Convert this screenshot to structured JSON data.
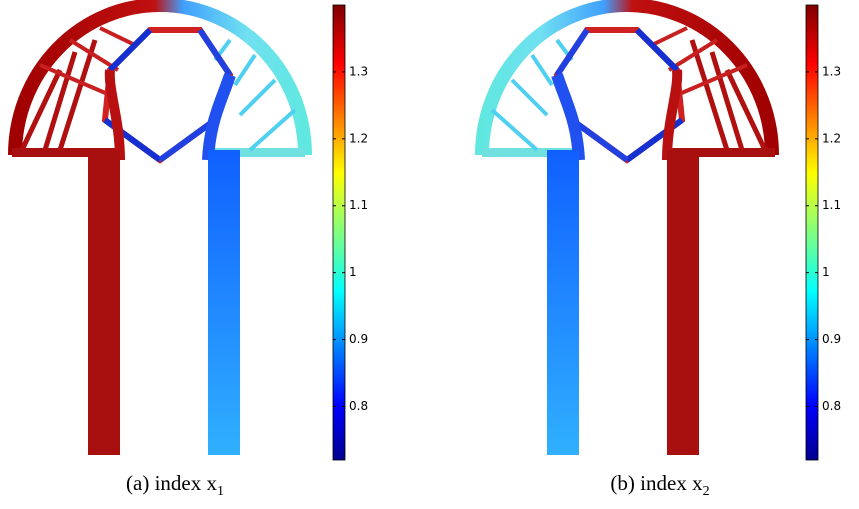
{
  "panels": [
    {
      "caption": "(a) index x",
      "subscript": "1",
      "colorbar": {
        "lim": [
          0.72,
          1.4
        ],
        "ticks": [
          0.8,
          0.9,
          1,
          1.1,
          1.2,
          1.3
        ]
      }
    },
    {
      "caption": "(b) index x",
      "subscript": "2",
      "colorbar": {
        "lim": [
          0.72,
          1.4
        ],
        "ticks": [
          0.8,
          0.9,
          1,
          1.1,
          1.2,
          1.3
        ]
      }
    }
  ]
}
